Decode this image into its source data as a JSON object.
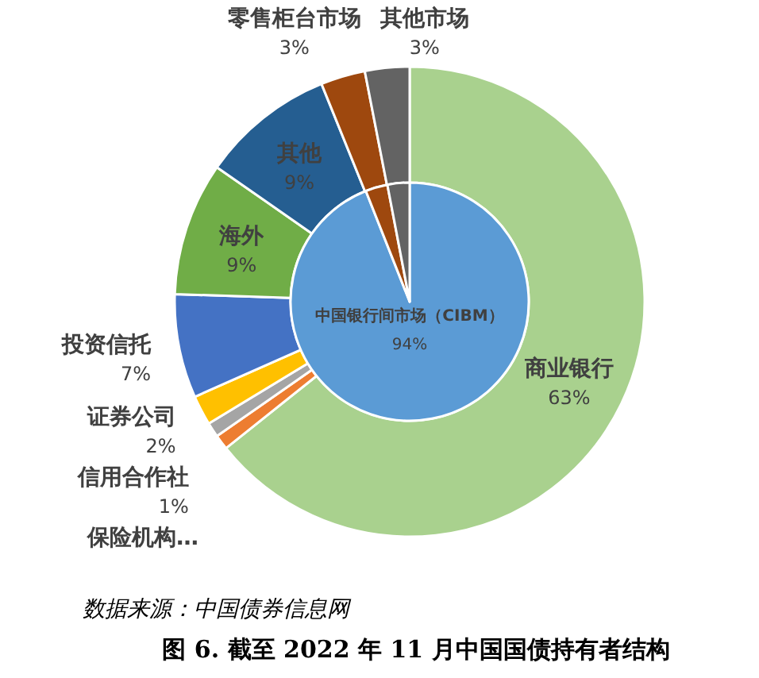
{
  "chart_data": [
    {
      "type": "donut",
      "title": "图 6. 截至 2022 年 11 月中国国债持有者结构",
      "annotations": [
        "数据来源：中国债券信息网"
      ],
      "categories": [
        "商业银行",
        "保险机构…",
        "信用合作社",
        "证券公司",
        "投资信托",
        "海外",
        "其他",
        "零售柜台市场",
        "其他市场"
      ],
      "values": [
        63,
        1,
        1,
        2,
        7,
        9,
        9,
        3,
        3
      ],
      "value_labels": [
        "63%",
        null,
        "1%",
        "2%",
        "7%",
        "9%",
        "9%",
        "3%",
        "3%"
      ],
      "colors": [
        "#a9d18e",
        "#ed7d31",
        "#a5a5a5",
        "#ffc000",
        "#4472c4",
        "#70ad47",
        "#255e91",
        "#9e480e",
        "#636363"
      ]
    },
    {
      "type": "pie",
      "categories": [
        "中国银行间市场（CIBM）",
        null,
        null
      ],
      "values": [
        94,
        3,
        3
      ],
      "value_labels": [
        "94%",
        null,
        null
      ],
      "colors": [
        "#5b9bd5",
        "#9e480e",
        "#636363"
      ]
    }
  ]
}
